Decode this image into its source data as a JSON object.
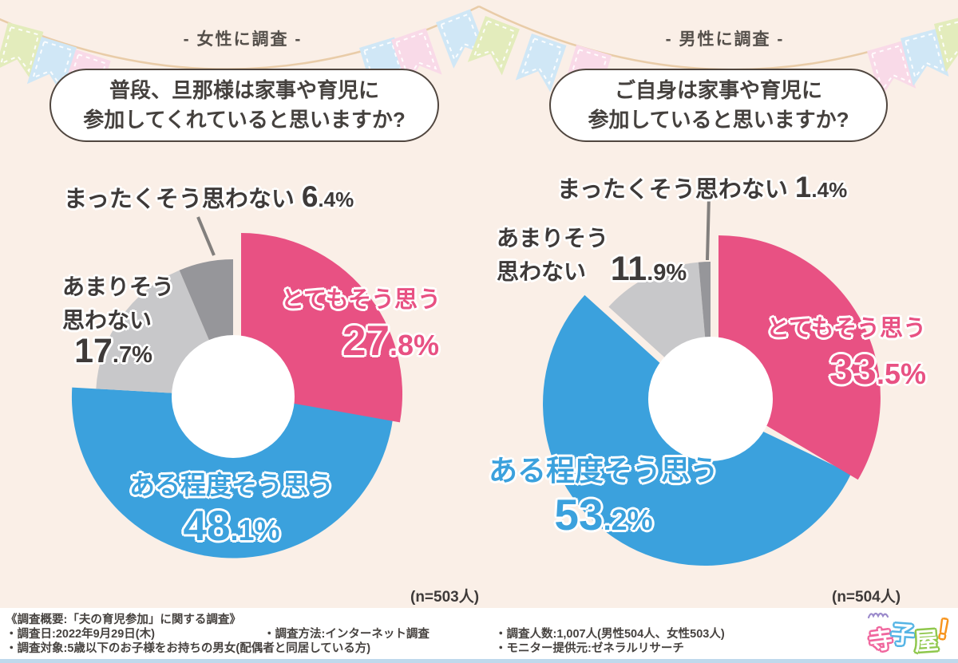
{
  "palette": {
    "background": "#FAEFE7",
    "footer_background": "#FFFFFF",
    "footer_divider": "#BFD9EC",
    "pink": "#E85183",
    "blue": "#3BA1DD",
    "gray_light": "#C8C8CA",
    "gray_dark": "#96969A",
    "text_dark": "#3E3A39"
  },
  "chart_data": [
    {
      "type": "pie",
      "variant": "donut",
      "header": "- 女性に調査 -",
      "question_lines": [
        "普段、旦那様は家事や育児に",
        "参加してくれていると思いますか?"
      ],
      "n_label": "(n=503人)",
      "legend_position": "on-chart",
      "slices": [
        {
          "label": "とてもそう思う",
          "value": 27.8,
          "color": "#E85183"
        },
        {
          "label": "ある程度そう思う",
          "value": 48.1,
          "color": "#3BA1DD"
        },
        {
          "label": "あまりそう思わない",
          "label_lines": [
            "あまりそう",
            "思わない"
          ],
          "value": 17.7,
          "color": "#C8C8CA"
        },
        {
          "label": "まったくそう思わない",
          "value": 6.4,
          "color": "#96969A"
        }
      ]
    },
    {
      "type": "pie",
      "variant": "donut",
      "header": "- 男性に調査 -",
      "question_lines": [
        "ご自身は家事や育児に",
        "参加していると思いますか?"
      ],
      "n_label": "(n=504人)",
      "legend_position": "on-chart",
      "slices": [
        {
          "label": "とてもそう思う",
          "value": 33.5,
          "color": "#E85183"
        },
        {
          "label": "ある程度そう思う",
          "value": 53.2,
          "color": "#3BA1DD"
        },
        {
          "label": "あまりそう思わない",
          "label_lines": [
            "あまりそう",
            "思わない"
          ],
          "value": 11.9,
          "color": "#C8C8CA"
        },
        {
          "label": "まったくそう思わない",
          "value": 1.4,
          "color": "#96969A"
        }
      ]
    }
  ],
  "footer": {
    "survey_title": "《調査概要:「夫の育児参加」に関する調査》",
    "survey_date": "・調査日:2022年9月29日(木)",
    "survey_method": "・調査方法:インターネット調査",
    "survey_target": "・調査対象:5歳以下のお子様をお持ちの男女(配偶者と同居している方)",
    "survey_count": "・調査人数:1,007人(男性504人、女性503人)",
    "survey_monitor": "・モニター提供元:ゼネラルリサーチ"
  },
  "logo": {
    "chars": [
      {
        "t": "寺",
        "c": "#F0679E"
      },
      {
        "t": "子",
        "c": "#55B4E5"
      },
      {
        "t": "屋",
        "c": "#8FC74C"
      },
      {
        "t": "!",
        "c": "#F7941D"
      }
    ]
  }
}
